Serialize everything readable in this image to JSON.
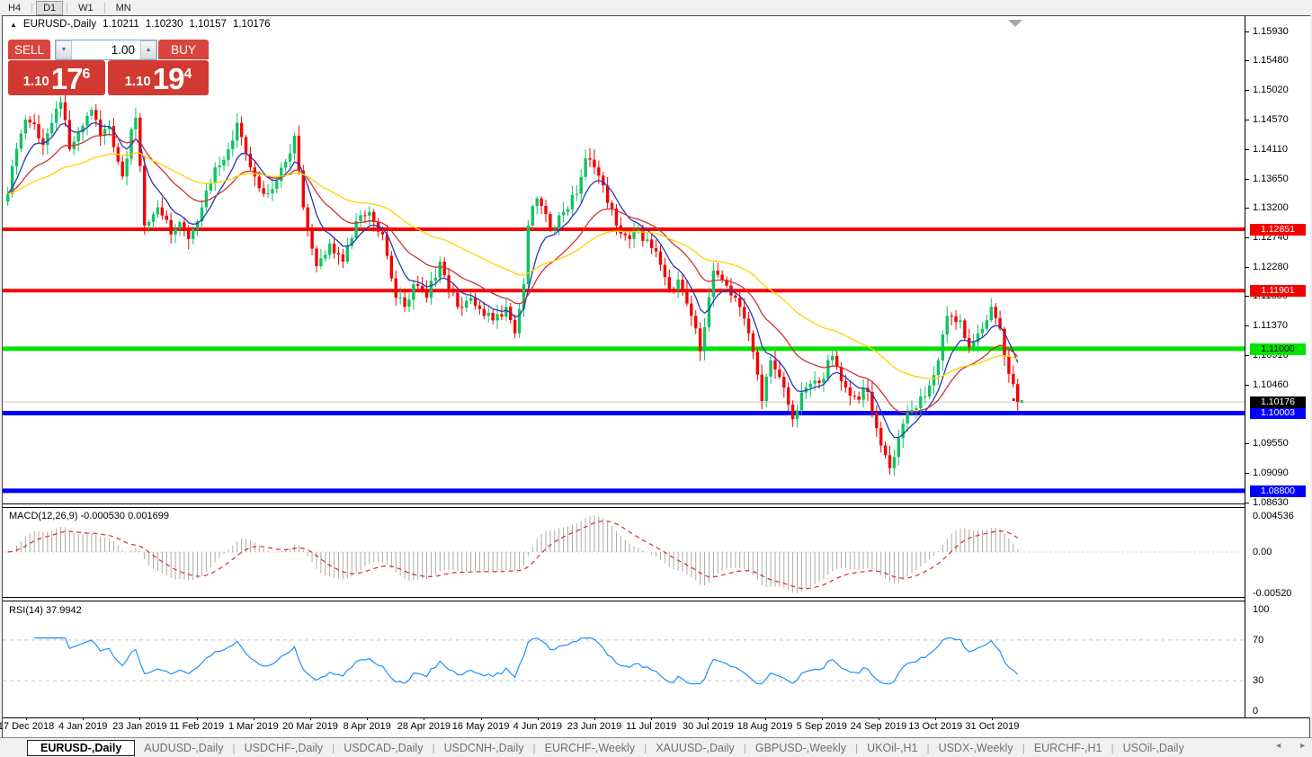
{
  "toolbar": {
    "timeframes": [
      {
        "label": "H4",
        "active": false
      },
      {
        "label": "D1",
        "active": true
      },
      {
        "label": "W1",
        "active": false
      },
      {
        "label": "MN",
        "active": false
      }
    ]
  },
  "chart": {
    "symbol_line": {
      "marker": "▲",
      "symbol": "EURUSD-,Daily",
      "open": "1.10211",
      "high": "1.10230",
      "low": "1.10157",
      "close": "1.10176"
    },
    "trade_panel": {
      "sell_label": "SELL",
      "buy_label": "BUY",
      "volume": "1.00",
      "spin_down": "▼",
      "spin_up": "▲",
      "sell_price_prefix": "1.10",
      "sell_price_big": "17",
      "sell_price_sup": "6",
      "buy_price_prefix": "1.10",
      "buy_price_big": "19",
      "buy_price_sup": "4"
    }
  },
  "macd": {
    "label": "MACD(12,26,9) -0.000530 0.001699",
    "axis": [
      {
        "label": "0.004536",
        "v": 0.004536
      },
      {
        "label": "0.00",
        "v": 0.0
      },
      {
        "label": "-0.00520",
        "v": -0.0052
      }
    ]
  },
  "rsi": {
    "label": "RSI(14) 37.9942",
    "axis": [
      {
        "label": "100",
        "v": 100
      },
      {
        "label": "70",
        "v": 70
      },
      {
        "label": "30",
        "v": 30
      },
      {
        "label": "0",
        "v": 0
      }
    ],
    "guides": [
      70,
      30
    ]
  },
  "tabs": [
    {
      "label": "EURUSD-,Daily",
      "active": true
    },
    {
      "label": "AUDUSD-,Daily",
      "active": false
    },
    {
      "label": "USDCHF-,Daily",
      "active": false
    },
    {
      "label": "USDCAD-,Daily",
      "active": false
    },
    {
      "label": "USDCNH-,Daily",
      "active": false
    },
    {
      "label": "EURCHF-,Weekly",
      "active": false
    },
    {
      "label": "XAUUSD-,Daily",
      "active": false
    },
    {
      "label": "GBPUSD-,Weekly",
      "active": false
    },
    {
      "label": "UKOil-,H1",
      "active": false
    },
    {
      "label": "USDX-,Weekly",
      "active": false
    },
    {
      "label": "EURCHF-,H1",
      "active": false
    },
    {
      "label": "USOil-,Daily",
      "active": false
    }
  ],
  "tab_arrows": {
    "left": "◄",
    "right": "►"
  },
  "chart_data": {
    "type": "candlestick",
    "symbol": "EURUSD-",
    "timeframe": "Daily",
    "ohlc_current": {
      "open": 1.10211,
      "high": 1.1023,
      "low": 1.10157,
      "close": 1.10176
    },
    "n_candles": 230,
    "close_keypoints": [
      [
        0,
        1.134
      ],
      [
        2,
        1.141
      ],
      [
        4,
        1.1455
      ],
      [
        6,
        1.1448
      ],
      [
        8,
        1.1416
      ],
      [
        10,
        1.145
      ],
      [
        12,
        1.1482
      ],
      [
        14,
        1.1409
      ],
      [
        16,
        1.1435
      ],
      [
        19,
        1.147
      ],
      [
        21,
        1.143
      ],
      [
        23,
        1.1445
      ],
      [
        26,
        1.1367
      ],
      [
        28,
        1.144
      ],
      [
        29,
        1.1458
      ],
      [
        31,
        1.1291
      ],
      [
        34,
        1.1319
      ],
      [
        37,
        1.1277
      ],
      [
        39,
        1.1296
      ],
      [
        41,
        1.127
      ],
      [
        44,
        1.1319
      ],
      [
        47,
        1.1381
      ],
      [
        50,
        1.1409
      ],
      [
        52,
        1.145
      ],
      [
        55,
        1.1381
      ],
      [
        58,
        1.134
      ],
      [
        61,
        1.136
      ],
      [
        63,
        1.139
      ],
      [
        65,
        1.143
      ],
      [
        67,
        1.1319
      ],
      [
        70,
        1.1228
      ],
      [
        73,
        1.1263
      ],
      [
        76,
        1.1235
      ],
      [
        79,
        1.1298
      ],
      [
        82,
        1.1312
      ],
      [
        85,
        1.1277
      ],
      [
        88,
        1.1179
      ],
      [
        90,
        1.1165
      ],
      [
        92,
        1.12
      ],
      [
        95,
        1.1179
      ],
      [
        98,
        1.1235
      ],
      [
        100,
        1.1193
      ],
      [
        102,
        1.1165
      ],
      [
        105,
        1.1179
      ],
      [
        108,
        1.1151
      ],
      [
        110,
        1.1144
      ],
      [
        113,
        1.1165
      ],
      [
        115,
        1.1124
      ],
      [
        117,
        1.12
      ],
      [
        118,
        1.1291
      ],
      [
        120,
        1.1333
      ],
      [
        123,
        1.1284
      ],
      [
        126,
        1.1312
      ],
      [
        129,
        1.134
      ],
      [
        131,
        1.1395
      ],
      [
        133,
        1.1381
      ],
      [
        135,
        1.1353
      ],
      [
        138,
        1.1291
      ],
      [
        141,
        1.127
      ],
      [
        143,
        1.1284
      ],
      [
        146,
        1.1256
      ],
      [
        148,
        1.123
      ],
      [
        150,
        1.1193
      ],
      [
        152,
        1.1207
      ],
      [
        155,
        1.1151
      ],
      [
        157,
        1.1096
      ],
      [
        159,
        1.118
      ],
      [
        160,
        1.1221
      ],
      [
        162,
        1.1207
      ],
      [
        165,
        1.1179
      ],
      [
        168,
        1.1124
      ],
      [
        170,
        1.106
      ],
      [
        171,
        1.1019
      ],
      [
        173,
        1.1082
      ],
      [
        176,
        1.104
      ],
      [
        178,
        1.0991
      ],
      [
        181,
        1.104
      ],
      [
        184,
        1.1047
      ],
      [
        187,
        1.1089
      ],
      [
        190,
        1.104
      ],
      [
        192,
        1.1026
      ],
      [
        195,
        1.1033
      ],
      [
        197,
        1.0977
      ],
      [
        200,
        1.0915
      ],
      [
        203,
        1.0984
      ],
      [
        205,
        1.1005
      ],
      [
        208,
        1.1026
      ],
      [
        211,
        1.1082
      ],
      [
        213,
        1.1151
      ],
      [
        216,
        1.1144
      ],
      [
        218,
        1.1103
      ],
      [
        221,
        1.1131
      ],
      [
        223,
        1.1165
      ],
      [
        225,
        1.1131
      ],
      [
        227,
        1.1061
      ],
      [
        229,
        1.10176
      ]
    ],
    "y_axis_ticks": [
      {
        "label": "1.15930",
        "p": 1.1593
      },
      {
        "label": "1.15480",
        "p": 1.1548
      },
      {
        "label": "1.15020",
        "p": 1.1502
      },
      {
        "label": "1.14570",
        "p": 1.1457
      },
      {
        "label": "1.14110",
        "p": 1.1411
      },
      {
        "label": "1.13650",
        "p": 1.1365
      },
      {
        "label": "1.13200",
        "p": 1.132
      },
      {
        "label": "1.12740",
        "p": 1.1274
      },
      {
        "label": "1.12280",
        "p": 1.1228
      },
      {
        "label": "1.11830",
        "p": 1.1183
      },
      {
        "label": "1.11370",
        "p": 1.1137
      },
      {
        "label": "1.10910",
        "p": 1.1091
      },
      {
        "label": "1.10460",
        "p": 1.1046
      },
      {
        "label": "1.09550",
        "p": 1.0955
      },
      {
        "label": "1.09090",
        "p": 1.0909
      },
      {
        "label": "1.08630",
        "p": 1.0863
      }
    ],
    "levels": [
      {
        "label": "1.12851",
        "p": 1.12851,
        "color": "#f60000",
        "lw": 4,
        "fg": "#ffffff"
      },
      {
        "label": "1.11901",
        "p": 1.11901,
        "color": "#f60000",
        "lw": 4,
        "fg": "#ffffff"
      },
      {
        "label": "1.11000",
        "p": 1.11,
        "color": "#00e400",
        "lw": 5,
        "fg": "#000000"
      },
      {
        "label": "1.10003",
        "p": 1.10003,
        "color": "#0000fe",
        "lw": 5,
        "fg": "#ffffff"
      },
      {
        "label": "1.08800",
        "p": 1.088,
        "color": "#0000fe",
        "lw": 5,
        "fg": "#ffffff"
      }
    ],
    "current_price": {
      "label": "1.10176",
      "p": 1.10176,
      "line_color": "#c8c8c8",
      "label_bg": "#000000"
    },
    "moving_averages": [
      {
        "period": 8,
        "color": "#2638b8"
      },
      {
        "period": 21,
        "color": "#cc3333"
      },
      {
        "period": 50,
        "color": "#ffd300"
      }
    ],
    "x_axis_labels": [
      "17 Dec 2018",
      "4 Jan 2019",
      "23 Jan 2019",
      "11 Feb 2019",
      "1 Mar 2019",
      "20 Mar 2019",
      "8 Apr 2019",
      "28 Apr 2019",
      "16 May 2019",
      "4 Jun 2019",
      "23 Jun 2019",
      "11 Jul 2019",
      "30 Jul 2019",
      "18 Aug 2019",
      "5 Sep 2019",
      "24 Sep 2019",
      "13 Oct 2019",
      "31 Oct 2019"
    ],
    "colors": {
      "bull": "#10c363",
      "bear": "#f40000",
      "macd_bar": "#aaaaaa",
      "macd_signal": "#d03030",
      "rsi_line": "#1e90ff",
      "guide_dash": "#c4c4c4"
    },
    "macd_params": {
      "fast": 12,
      "slow": 26,
      "signal": 9
    },
    "rsi_params": {
      "period": 14
    }
  }
}
